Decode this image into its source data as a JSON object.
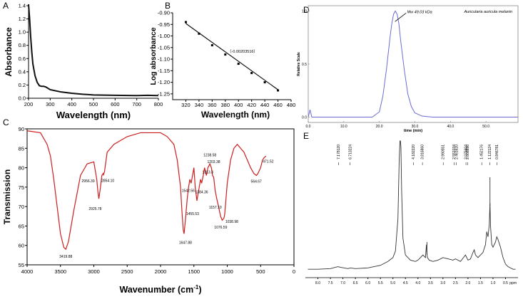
{
  "chart_data": [
    {
      "panel": "A",
      "type": "line",
      "ylabel": "Absorbance",
      "xlabel": "Wavelength (nm)",
      "xlim": [
        200,
        800
      ],
      "ylim": [
        0,
        1.4
      ],
      "xticks": [
        200,
        300,
        400,
        500,
        600,
        700,
        800
      ],
      "yticks": [
        0,
        0.2,
        0.4,
        0.6,
        0.8,
        1.0,
        1.2,
        1.4
      ],
      "x": [
        200,
        205,
        210,
        215,
        220,
        230,
        240,
        250,
        260,
        270,
        280,
        290,
        300,
        350,
        400,
        450,
        500,
        600,
        700,
        750,
        800
      ],
      "y": [
        1.45,
        1.2,
        0.92,
        0.7,
        0.52,
        0.34,
        0.24,
        0.19,
        0.18,
        0.18,
        0.17,
        0.15,
        0.13,
        0.095,
        0.075,
        0.06,
        0.05,
        0.045,
        0.04,
        0.045,
        0.04
      ]
    },
    {
      "panel": "B",
      "type": "scatter",
      "ylabel": "Log absorbance",
      "xlabel": "Wavelength (nm)",
      "xlim": [
        300,
        480
      ],
      "ylim": [
        -1.275,
        -0.9
      ],
      "xticks": [
        320,
        340,
        360,
        380,
        400,
        420,
        440,
        460,
        480
      ],
      "yticks": [
        -0.9,
        -0.95,
        -1.0,
        -1.05,
        -1.1,
        -1.15,
        -1.2,
        -1.25
      ],
      "x": [
        320,
        340,
        360,
        380,
        400,
        420,
        440,
        460
      ],
      "y": [
        -0.94,
        -0.99,
        -1.04,
        -1.08,
        -1.12,
        -1.16,
        -1.2,
        -1.235
      ],
      "fit_x": [
        320,
        460
      ],
      "fit_y": [
        -0.946,
        -1.232
      ],
      "annotation": "（-0.00203516）"
    },
    {
      "panel": "C",
      "type": "line",
      "ylabel": "Transmission",
      "xlabel": "Wavenumber (cm",
      "xlabel_sup": "-1",
      "xlabel_close": ")",
      "xlim": [
        4000,
        0
      ],
      "ylim": [
        55,
        90
      ],
      "xticks": [
        4000,
        3500,
        3000,
        2500,
        2000,
        1500,
        1000,
        500,
        0
      ],
      "yticks": [
        55,
        60,
        65,
        70,
        75,
        80,
        85,
        90
      ],
      "x": [
        4000,
        3800,
        3700,
        3650,
        3600,
        3550,
        3500,
        3450,
        3420,
        3380,
        3300,
        3200,
        3100,
        3000,
        2956,
        2940,
        2925,
        2900,
        2880,
        2860,
        2854,
        2840,
        2800,
        2700,
        2600,
        2500,
        2400,
        2300,
        2200,
        2100,
        2000,
        1900,
        1800,
        1750,
        1700,
        1680,
        1660,
        1647,
        1630,
        1600,
        1580,
        1560,
        1542,
        1520,
        1500,
        1480,
        1455,
        1430,
        1400,
        1384,
        1360,
        1340,
        1313,
        1290,
        1260,
        1238,
        1220,
        1203,
        1180,
        1157,
        1130,
        1100,
        1076,
        1050,
        1038,
        1000,
        950,
        900,
        850,
        800,
        750,
        700,
        650,
        600,
        564,
        540,
        500,
        471,
        450,
        420
      ],
      "y": [
        89.5,
        89,
        86,
        83,
        77,
        70,
        63,
        59.5,
        59,
        61,
        69,
        78,
        81,
        81.5,
        77,
        74,
        72,
        75,
        78,
        78.5,
        78.2,
        79,
        84,
        86,
        87,
        88,
        88.5,
        89,
        89,
        89,
        89,
        88,
        86,
        82,
        75,
        69,
        64,
        63,
        66,
        72,
        75,
        77,
        76,
        78,
        80,
        75,
        71.5,
        74,
        77,
        76,
        78,
        80,
        78,
        80,
        81,
        80,
        78,
        77.5,
        74,
        72,
        70,
        67.5,
        66.5,
        67,
        68,
        76,
        82,
        85,
        86,
        85,
        84,
        82,
        80,
        78.5,
        78,
        78.5,
        80,
        82,
        82.5,
        83
      ]
    },
    {
      "panel": "D",
      "type": "line",
      "title": "Auricularia auricula melanin",
      "annotation": "Mw 49.03 kDa",
      "ylabel": "Relative Scale",
      "xlabel": "time (min)",
      "xlim": [
        0,
        59
      ],
      "ylim": [
        -0.05,
        1.05
      ],
      "xticks": [
        0,
        10,
        20,
        30,
        40,
        50
      ],
      "xticklabels": [
        "0.0",
        "10.0",
        "20.0",
        "30.0",
        "40.0",
        "50.0"
      ],
      "yticks": [
        0,
        0.5,
        1.0
      ],
      "yticklabels": [
        "0.0",
        "0.5",
        "1.0"
      ],
      "x": [
        0,
        0.5,
        1,
        2,
        5,
        10,
        15,
        18,
        20,
        21,
        22,
        23,
        23.5,
        24,
        24.5,
        25,
        25.5,
        26,
        27,
        28,
        29,
        30,
        32,
        35,
        40,
        50,
        59
      ],
      "y": [
        0,
        0.07,
        0.0,
        0.0,
        0.0,
        0.0,
        0.0,
        0.0,
        0.05,
        0.2,
        0.45,
        0.75,
        0.88,
        0.97,
        1.0,
        0.97,
        0.88,
        0.72,
        0.45,
        0.22,
        0.1,
        0.04,
        0.01,
        0.0,
        0.0,
        0.0,
        0.0
      ]
    },
    {
      "panel": "E",
      "type": "line",
      "xlabel": "ppm",
      "xlim": [
        8.5,
        0
      ],
      "xticks": [
        8.0,
        7.5,
        7.0,
        6.5,
        6.0,
        5.5,
        5.0,
        4.5,
        4.0,
        3.5,
        3.0,
        2.5,
        2.0,
        1.5,
        1.0,
        0.5
      ],
      "xticklabels": [
        "8.0",
        "7.5",
        "7.0",
        "6.5",
        "6.0",
        "5.5",
        "5.0",
        "4.5",
        "4.0",
        "3.5",
        "3.0",
        "2.5",
        "2.0",
        "1.5",
        "1.0",
        "0.5"
      ],
      "peak_labels": [
        {
          "ppm": 7.18,
          "text": "7.178120"
        },
        {
          "ppm": 6.71,
          "text": "6.713224"
        },
        {
          "ppm": 4.18,
          "text": "4.182220"
        },
        {
          "ppm": 3.82,
          "text": "3.816860"
        },
        {
          "ppm": 2.99,
          "text": "2.990551"
        },
        {
          "ppm": 2.55,
          "text": "2.551034"
        },
        {
          "ppm": 2.46,
          "text": "2.461620"
        },
        {
          "ppm": 2.08,
          "text": "2.075604"
        },
        {
          "ppm": 2.01,
          "text": "2.008896"
        },
        {
          "ppm": 1.45,
          "text": "1.452176"
        },
        {
          "ppm": 1.12,
          "text": "1.122124"
        },
        {
          "ppm": 0.84,
          "text": "0.846781"
        }
      ],
      "x": [
        8.4,
        8.0,
        7.5,
        7.2,
        7.1,
        6.8,
        6.7,
        6.5,
        6.0,
        5.5,
        5.2,
        5.0,
        4.9,
        4.8,
        4.75,
        4.72,
        4.7,
        4.68,
        4.65,
        4.6,
        4.5,
        4.3,
        4.1,
        4.0,
        3.9,
        3.8,
        3.7,
        3.66,
        3.64,
        3.62,
        3.55,
        3.4,
        3.2,
        3.0,
        2.8,
        2.6,
        2.5,
        2.3,
        2.1,
        2.05,
        2.0,
        1.9,
        1.8,
        1.75,
        1.7,
        1.6,
        1.5,
        1.4,
        1.3,
        1.25,
        1.2,
        1.15,
        1.12,
        1.1,
        1.05,
        1.0,
        0.9,
        0.85,
        0.8,
        0.7,
        0.6,
        0.5,
        0.4,
        0.3,
        0.2,
        0.1
      ],
      "y": [
        0.01,
        0.01,
        0.015,
        0.03,
        0.025,
        0.015,
        0.02,
        0.015,
        0.02,
        0.04,
        0.07,
        0.1,
        0.15,
        0.4,
        0.85,
        1.0,
        1.0,
        0.95,
        0.6,
        0.25,
        0.12,
        0.08,
        0.07,
        0.08,
        0.1,
        0.12,
        0.1,
        0.2,
        0.13,
        0.1,
        0.08,
        0.07,
        0.08,
        0.1,
        0.09,
        0.08,
        0.09,
        0.07,
        0.12,
        0.1,
        0.08,
        0.09,
        0.14,
        0.16,
        0.12,
        0.1,
        0.12,
        0.14,
        0.2,
        0.3,
        0.26,
        0.35,
        0.52,
        0.35,
        0.2,
        0.18,
        0.22,
        0.26,
        0.24,
        0.18,
        0.1,
        0.05,
        0.03,
        0.02,
        0.01,
        0.01
      ],
      "spike_x": 1.12
    }
  ],
  "colors": {
    "absorbance_line": "#111111",
    "ftir_line": "#cc1f1f",
    "gpc_line": "#6b6bd6",
    "nmr_line": "#333333",
    "fit_line": "#111111"
  },
  "panels": {
    "A": {
      "letter": "A"
    },
    "B": {
      "letter": "B"
    },
    "C": {
      "letter": "C"
    },
    "D": {
      "letter": "D"
    },
    "E": {
      "letter": "E"
    }
  },
  "ftir_peak_labels": [
    {
      "wn": 3419.88,
      "text": "3419.88"
    },
    {
      "wn": 2956.39,
      "text": "2956.39"
    },
    {
      "wn": 2925.78,
      "text": "2925.78"
    },
    {
      "wn": 2854.1,
      "text": "2854.10"
    },
    {
      "wn": 1647.88,
      "text": "1647.88"
    },
    {
      "wn": 1542.56,
      "text": "1542.56"
    },
    {
      "wn": 1455.53,
      "text": "1455.53"
    },
    {
      "wn": 1384.36,
      "text": "1384.36"
    },
    {
      "wn": 1313.3,
      "text": "1313.3"
    },
    {
      "wn": 1238.58,
      "text": "1238.58"
    },
    {
      "wn": 1203.38,
      "text": "1203.38"
    },
    {
      "wn": 1157.1,
      "text": "1157.10"
    },
    {
      "wn": 1076.59,
      "text": "1076.59"
    },
    {
      "wn": 1038.98,
      "text": "1038.98"
    },
    {
      "wn": 564.67,
      "text": "564.67"
    },
    {
      "wn": 471.52,
      "text": "471.52"
    }
  ]
}
